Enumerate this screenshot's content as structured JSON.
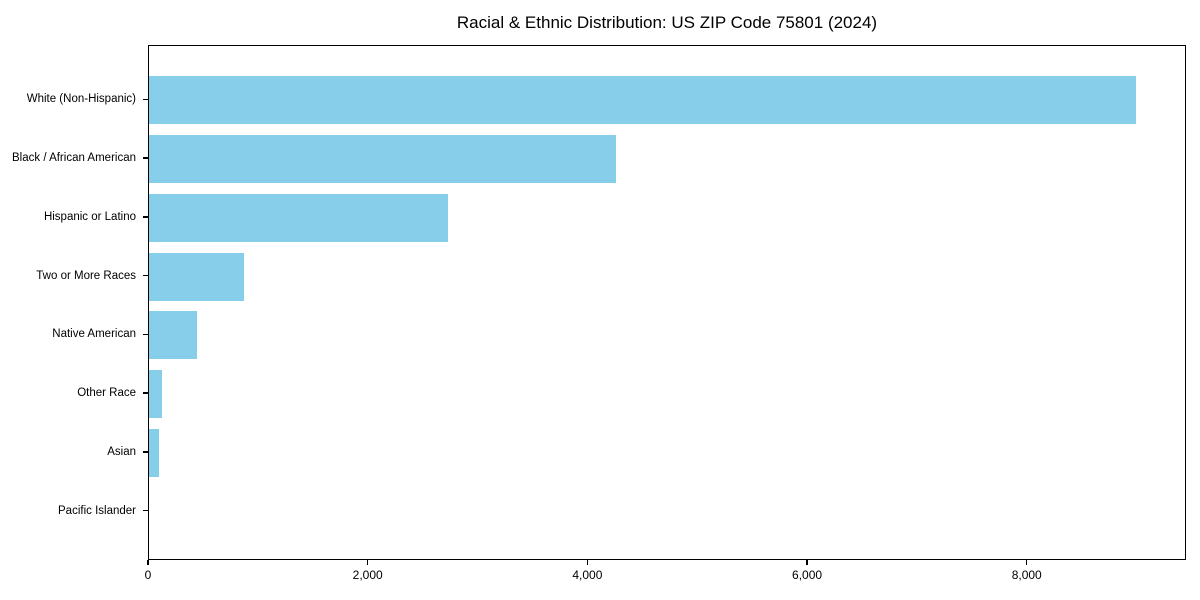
{
  "chart_data": {
    "type": "bar",
    "orientation": "horizontal",
    "title": "Racial & Ethnic Distribution: US ZIP Code 75801 (2024)",
    "categories": [
      "White (Non-Hispanic)",
      "Black / African American",
      "Hispanic or Latino",
      "Two or More Races",
      "Native American",
      "Other Race",
      "Asian",
      "Pacific Islander"
    ],
    "values": [
      9000,
      4260,
      2730,
      865,
      440,
      120,
      95,
      0
    ],
    "xlabel": "",
    "ylabel": "",
    "xlim": [
      0,
      9450
    ],
    "x_ticks": [
      0,
      2000,
      4000,
      6000,
      8000
    ],
    "x_tick_labels": [
      "0",
      "2,000",
      "4,000",
      "6,000",
      "8,000"
    ],
    "bar_color": "#87CEEB",
    "background_color": "#ffffff",
    "spine_color": "#000000",
    "grid": false,
    "legend": null
  }
}
